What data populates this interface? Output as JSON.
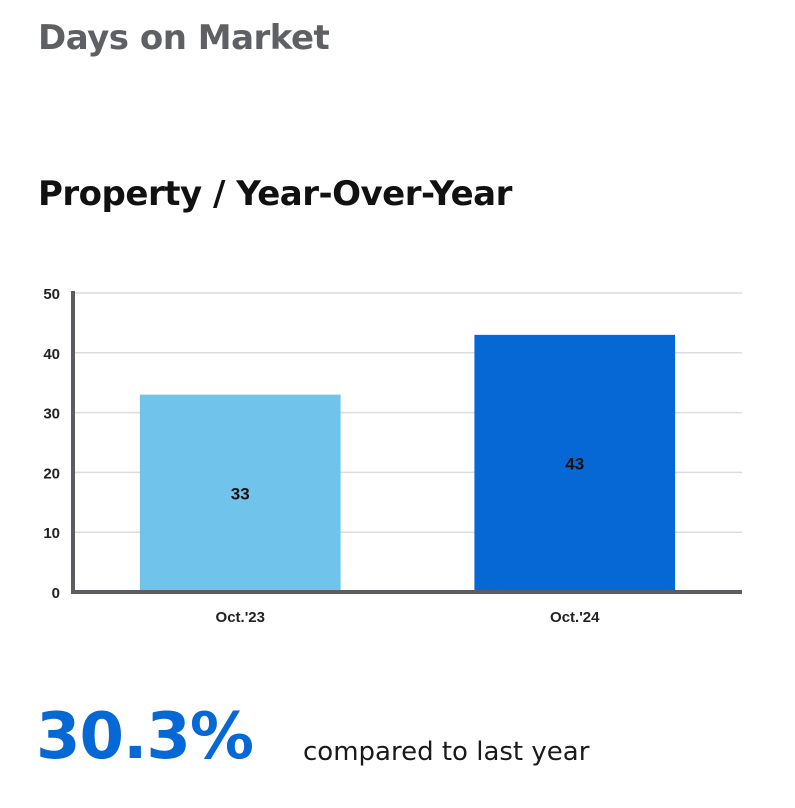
{
  "header": {
    "title": "Days on Market"
  },
  "chart_data": {
    "type": "bar",
    "title": "Property / Year-Over-Year",
    "categories": [
      "Oct.'23",
      "Oct.'24"
    ],
    "values": [
      33,
      43
    ],
    "value_labels": [
      "33",
      "43"
    ],
    "colors": [
      "#70c3ea",
      "#0568d4"
    ],
    "ylim": [
      0,
      50
    ],
    "yticks": [
      0,
      10,
      20,
      30,
      40,
      50
    ],
    "grid": true,
    "xlabel": "",
    "ylabel": ""
  },
  "stat": {
    "value": "30.3%",
    "caption": "compared to last year",
    "color": "#0568d4"
  }
}
